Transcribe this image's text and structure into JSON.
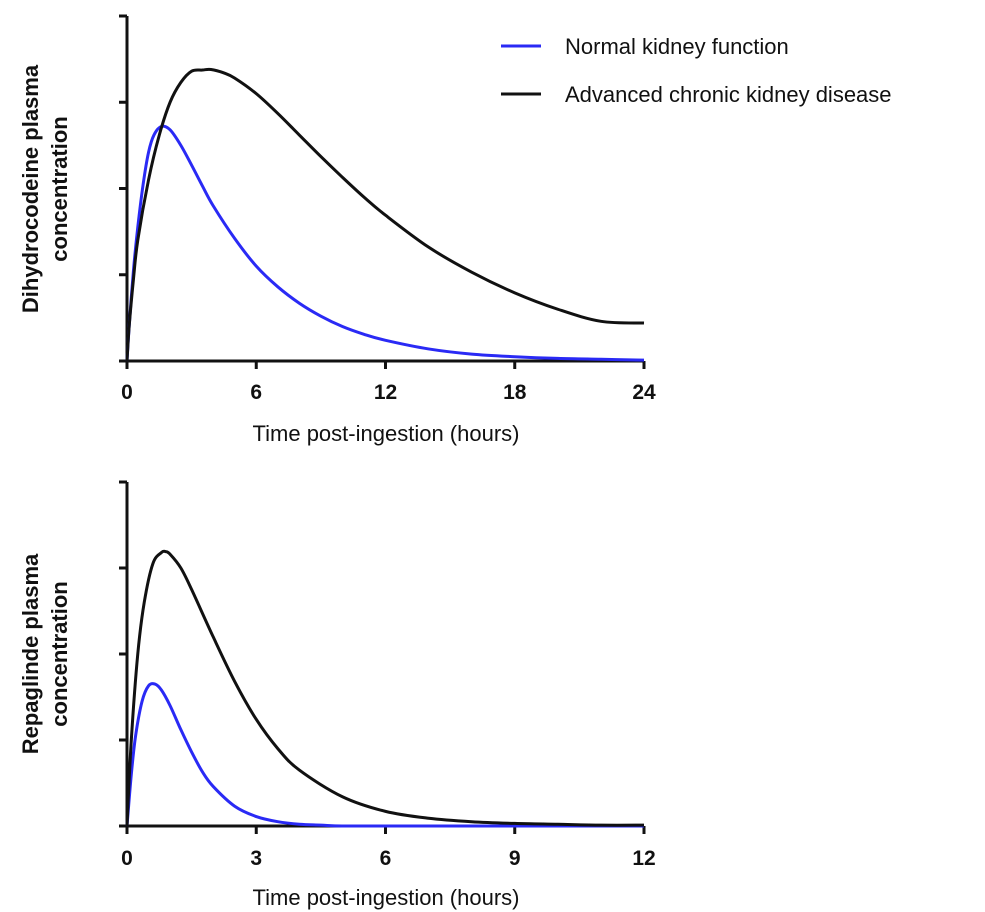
{
  "legend": [
    {
      "name": "Normal kidney function",
      "color": "#2a2af5"
    },
    {
      "name": "Advanced chronic kidney disease",
      "color": "#111111"
    }
  ],
  "chart_data": [
    {
      "type": "line",
      "xlabel": "Time post-ingestion (hours)",
      "ylabel_lines": [
        "Dihydrocodeine plasma",
        "concentration"
      ],
      "xlim": [
        0,
        24
      ],
      "ylim": [
        0,
        4
      ],
      "x_ticks": [
        0,
        6,
        12,
        18,
        24
      ],
      "y_ticks": [
        0,
        1,
        2,
        3,
        4
      ],
      "y_tick_labels_shown": false,
      "legend_position": "top-right",
      "series": [
        {
          "name": "Normal kidney function",
          "color": "#2a2af5",
          "x": [
            0,
            0.1,
            0.3,
            0.5,
            0.75,
            1,
            1.25,
            1.6,
            2,
            2.5,
            3,
            3.5,
            4,
            5,
            6,
            7,
            8,
            9,
            10,
            11,
            12,
            14,
            16,
            18,
            20,
            22,
            24
          ],
          "y": [
            0,
            0.4,
            1.05,
            1.55,
            2.05,
            2.42,
            2.62,
            2.72,
            2.68,
            2.5,
            2.27,
            2.03,
            1.8,
            1.42,
            1.1,
            0.86,
            0.67,
            0.52,
            0.4,
            0.31,
            0.24,
            0.14,
            0.08,
            0.05,
            0.03,
            0.02,
            0.01
          ]
        },
        {
          "name": "Advanced chronic kidney disease",
          "color": "#111111",
          "x": [
            0,
            0.1,
            0.3,
            0.5,
            1,
            1.5,
            2,
            2.5,
            3,
            3.5,
            3.9,
            4.5,
            5,
            6,
            7,
            8,
            9,
            10,
            11,
            12,
            14,
            16,
            18,
            20,
            22,
            24
          ],
          "y": [
            0,
            0.4,
            0.95,
            1.4,
            2.1,
            2.62,
            3.0,
            3.23,
            3.3603,
            3.3735,
            3.38,
            3.34,
            3.28,
            3.1,
            2.87,
            2.62,
            2.37,
            2.13,
            1.9,
            1.69,
            1.32,
            1.03,
            0.79,
            0.6,
            0.46,
            0.44
          ]
        }
      ]
    },
    {
      "type": "line",
      "xlabel": "Time post-ingestion (hours)",
      "ylabel_lines": [
        "Repaglinde plasma",
        "concentration"
      ],
      "xlim": [
        0,
        12
      ],
      "ylim": [
        0,
        4
      ],
      "x_ticks": [
        0,
        3,
        6,
        9,
        12
      ],
      "y_ticks": [
        0,
        1,
        2,
        3,
        4
      ],
      "y_tick_labels_shown": false,
      "series": [
        {
          "name": "Normal kidney function",
          "color": "#2a2af5",
          "x": [
            0,
            0.1,
            0.2,
            0.35,
            0.5,
            0.65,
            0.8,
            1.0,
            1.25,
            1.5,
            1.75,
            2.0,
            2.5,
            3.0,
            3.5,
            4.0,
            4.5,
            5,
            6,
            8,
            10,
            12
          ],
          "y": [
            0,
            0.6,
            1.05,
            1.45,
            1.63,
            1.65,
            1.58,
            1.4,
            1.12,
            0.86,
            0.63,
            0.46,
            0.23,
            0.11,
            0.05,
            0.02,
            0.01,
            0,
            0,
            0,
            0,
            0
          ]
        },
        {
          "name": "Advanced chronic kidney disease",
          "color": "#111111",
          "x": [
            0,
            0.1,
            0.25,
            0.4,
            0.6,
            0.8,
            0.9,
            1.0,
            1.25,
            1.5,
            2.0,
            2.5,
            3.0,
            3.5,
            4.0,
            5.0,
            6.0,
            7.0,
            8.0,
            9.0,
            10.0,
            11.0,
            12.0
          ],
          "y": [
            0,
            1.0,
            2.0,
            2.6,
            3.05,
            3.18,
            3.19,
            3.16,
            3.0,
            2.75,
            2.2,
            1.68,
            1.24,
            0.9,
            0.65,
            0.34,
            0.17,
            0.09,
            0.05,
            0.03,
            0.02,
            0.01,
            0.01
          ]
        }
      ]
    }
  ]
}
